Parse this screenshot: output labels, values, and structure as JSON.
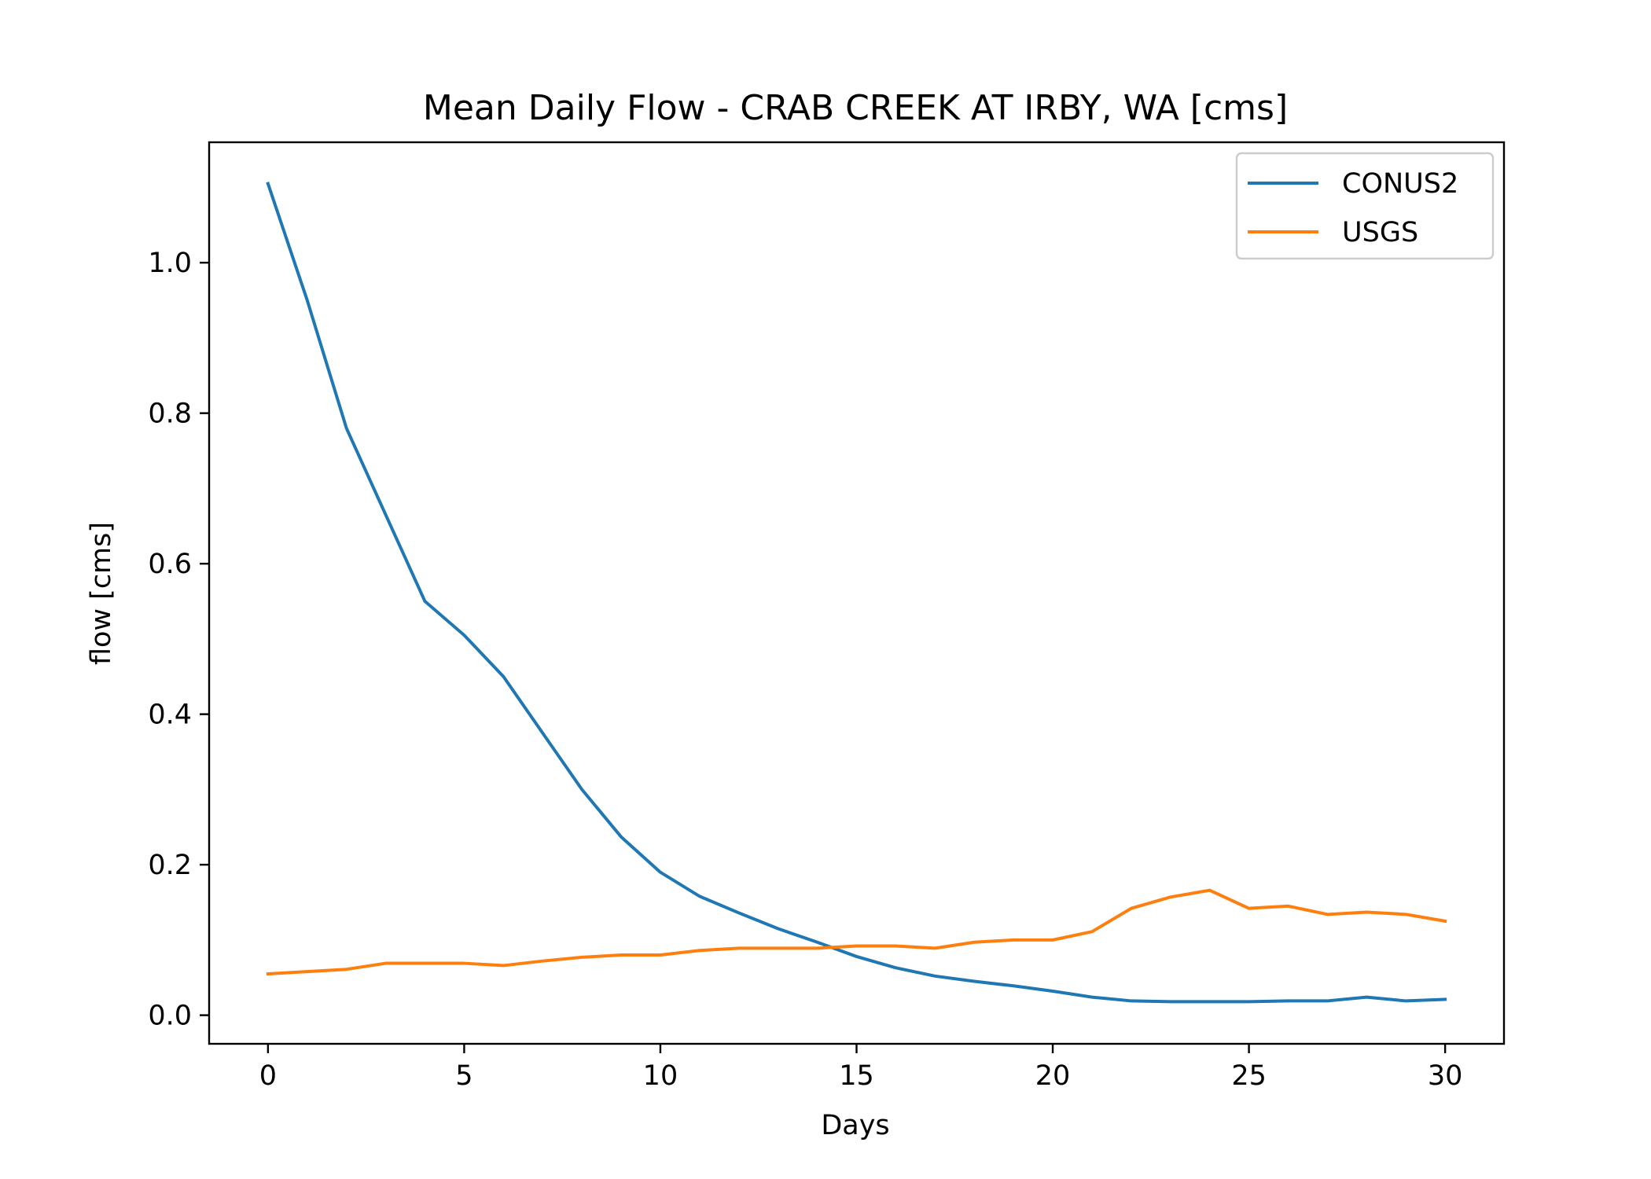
{
  "chart_data": {
    "type": "line",
    "title": "Mean Daily Flow - CRAB CREEK AT IRBY, WA [cms]",
    "xlabel": "Days",
    "ylabel": "flow [cms]",
    "xlim": [
      -1.5,
      31.5
    ],
    "ylim": [
      -0.038,
      1.16
    ],
    "xticks": [
      0,
      5,
      10,
      15,
      20,
      25,
      30
    ],
    "yticks": [
      0.0,
      0.2,
      0.4,
      0.6,
      0.8,
      1.0
    ],
    "xtick_labels": [
      "0",
      "5",
      "10",
      "15",
      "20",
      "25",
      "30"
    ],
    "ytick_labels": [
      "0.0",
      "0.2",
      "0.4",
      "0.6",
      "0.8",
      "1.0"
    ],
    "grid": false,
    "legend_position": "top-right",
    "x": [
      0,
      1,
      2,
      3,
      4,
      5,
      6,
      7,
      8,
      9,
      10,
      11,
      12,
      13,
      14,
      15,
      16,
      17,
      18,
      19,
      20,
      21,
      22,
      23,
      24,
      25,
      26,
      27,
      28,
      29,
      30
    ],
    "series": [
      {
        "name": "CONUS2",
        "color": "#1f77b4",
        "values": [
          1.105,
          0.95,
          0.78,
          0.665,
          0.55,
          0.505,
          0.45,
          0.375,
          0.3,
          0.237,
          0.19,
          0.158,
          0.136,
          0.115,
          0.097,
          0.078,
          0.063,
          0.052,
          0.045,
          0.039,
          0.032,
          0.024,
          0.019,
          0.018,
          0.018,
          0.018,
          0.019,
          0.019,
          0.024,
          0.019,
          0.021
        ]
      },
      {
        "name": "USGS",
        "color": "#ff7f0e",
        "values": [
          0.055,
          0.058,
          0.061,
          0.069,
          0.069,
          0.069,
          0.066,
          0.072,
          0.077,
          0.08,
          0.08,
          0.086,
          0.089,
          0.089,
          0.089,
          0.092,
          0.092,
          0.089,
          0.097,
          0.1,
          0.1,
          0.111,
          0.142,
          0.157,
          0.166,
          0.142,
          0.145,
          0.134,
          0.137,
          0.134,
          0.125
        ]
      }
    ]
  }
}
